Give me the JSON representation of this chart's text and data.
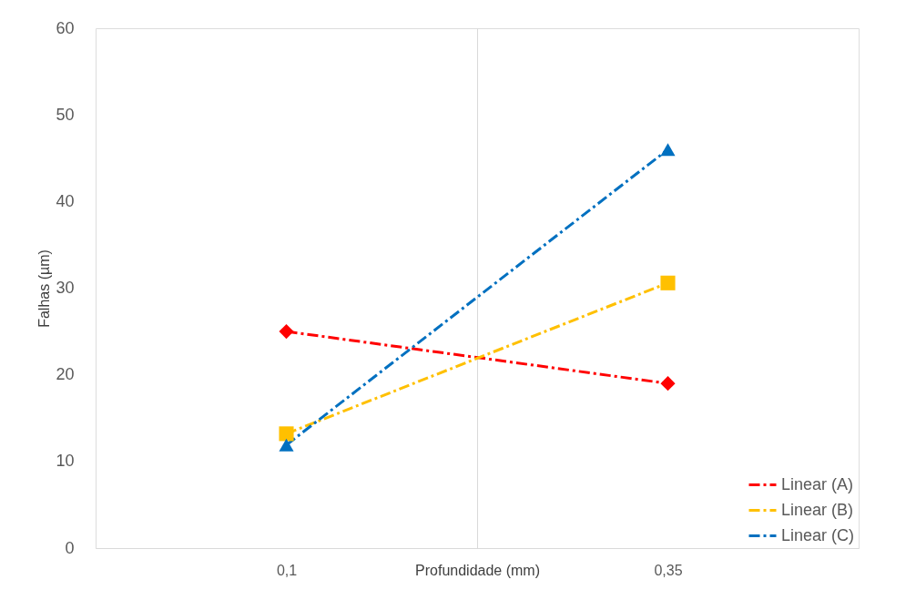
{
  "chart_data": {
    "type": "line",
    "xlabel": "Profundidade (mm)",
    "ylabel": "Falhas (µm)",
    "x": [
      0.1,
      0.35
    ],
    "series": [
      {
        "name": "Linear (A)",
        "color": "#ff0000",
        "marker": "diamond",
        "values": [
          25,
          19
        ]
      },
      {
        "name": "Linear (B)",
        "color": "#ffc000",
        "marker": "square",
        "values": [
          13.2,
          30.6
        ]
      },
      {
        "name": "Linear (C)",
        "color": "#0070c0",
        "marker": "triangle",
        "values": [
          11.9,
          46
        ]
      }
    ],
    "xlim": [
      -0.025,
      0.475
    ],
    "xticks": [
      {
        "value": 0.1,
        "label": "0,1"
      },
      {
        "value": 0.225,
        "label": null
      },
      {
        "value": 0.35,
        "label": "0,35"
      }
    ],
    "ylim": [
      0,
      60
    ],
    "yticks": [
      0,
      10,
      20,
      30,
      40,
      50,
      60
    ],
    "grid": "x",
    "legend": "bottom right",
    "line_style": "dashed"
  }
}
